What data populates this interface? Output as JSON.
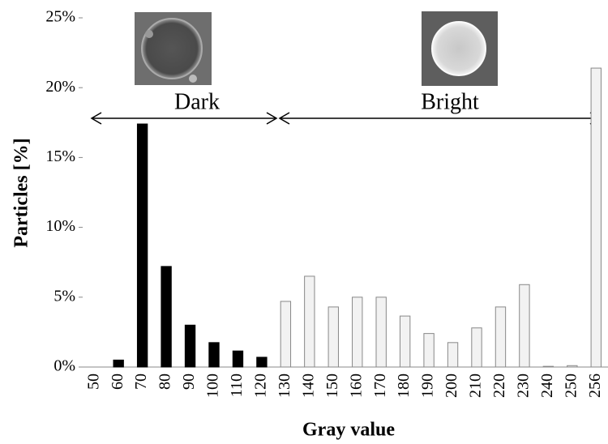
{
  "chart_data": {
    "type": "bar",
    "y_label": "Particles [%]",
    "x_label": "Gray value",
    "annotations": [
      "Dark",
      "Bright"
    ],
    "categories": [
      "50",
      "60",
      "70",
      "80",
      "90",
      "100",
      "110",
      "120",
      "130",
      "140",
      "150",
      "160",
      "170",
      "180",
      "190",
      "200",
      "210",
      "220",
      "230",
      "240",
      "250",
      "256"
    ],
    "values": [
      0,
      0.5,
      17.4,
      7.2,
      3.0,
      1.75,
      1.15,
      0.7,
      4.7,
      6.5,
      4.3,
      5.0,
      5.0,
      3.65,
      2.4,
      1.75,
      2.8,
      4.3,
      5.9,
      0.05,
      0.1,
      21.4
    ],
    "colors": [
      "#000000",
      "#000000",
      "#000000",
      "#000000",
      "#000000",
      "#000000",
      "#000000",
      "#000000",
      "#f2f2f2",
      "#f2f2f2",
      "#f2f2f2",
      "#f2f2f2",
      "#f2f2f2",
      "#f2f2f2",
      "#f2f2f2",
      "#f2f2f2",
      "#f2f2f2",
      "#f2f2f2",
      "#f2f2f2",
      "#f2f2f2",
      "#f2f2f2",
      "#f2f2f2"
    ],
    "ylim": [
      0,
      25
    ],
    "yticks": [
      {
        "value": 0,
        "label": "0%"
      },
      {
        "value": 5,
        "label": "5%"
      },
      {
        "value": 10,
        "label": "10%"
      },
      {
        "value": 15,
        "label": "15%"
      },
      {
        "value": 20,
        "label": "20%"
      },
      {
        "value": 25,
        "label": "25%"
      }
    ],
    "grid": false
  }
}
